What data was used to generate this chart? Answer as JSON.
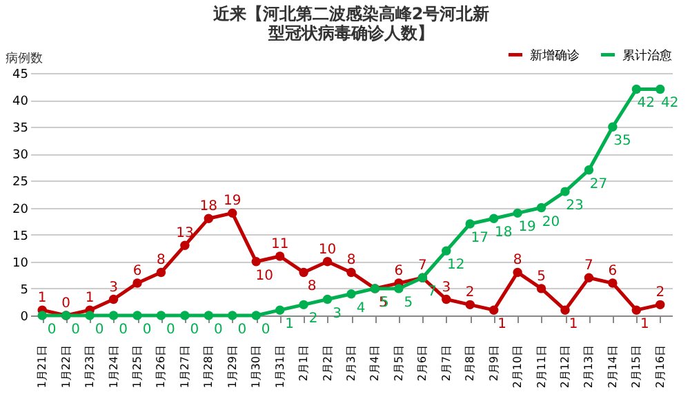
{
  "chart_data": {
    "type": "line",
    "title": "近来【河北第二波感染高峰2号河北新型冠状病毒确诊人数】",
    "ylabel": "病例数",
    "categories": [
      "1月21日",
      "1月22日",
      "1月23日",
      "1月24日",
      "1月25日",
      "1月26日",
      "1月27日",
      "1月28日",
      "1月29日",
      "1月30日",
      "1月31日",
      "2月1日",
      "2月2日",
      "2月3日",
      "2月4日",
      "2月5日",
      "2月6日",
      "2月7日",
      "2月8日",
      "2月9日",
      "2月10日",
      "2月11日",
      "2月12日",
      "2月13日",
      "2月14日",
      "2月15日",
      "2月16日"
    ],
    "series": [
      {
        "name": "新增确诊",
        "color": "#c00000",
        "values": [
          1,
          0,
          1,
          3,
          6,
          8,
          13,
          18,
          19,
          10,
          11,
          8,
          10,
          8,
          5,
          6,
          7,
          3,
          2,
          1,
          8,
          5,
          1,
          7,
          6,
          1,
          2
        ]
      },
      {
        "name": "累计治愈",
        "color": "#00b050",
        "values": [
          0,
          0,
          0,
          0,
          0,
          0,
          0,
          0,
          0,
          0,
          1,
          2,
          3,
          4,
          5,
          5,
          7,
          12,
          17,
          18,
          19,
          20,
          23,
          27,
          35,
          42,
          42
        ]
      }
    ],
    "ylim": [
      0,
      45
    ],
    "yticks": [
      0,
      5,
      10,
      15,
      20,
      25,
      30,
      35,
      40,
      45
    ],
    "grid": "y",
    "legend": "top right",
    "marker": "circle",
    "line_style": "solid",
    "data_labels": true
  }
}
